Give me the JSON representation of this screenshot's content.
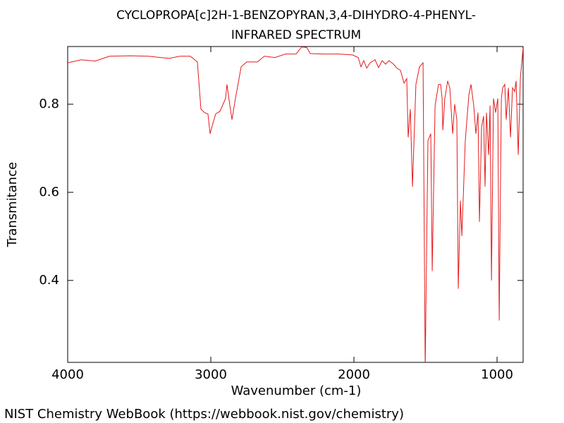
{
  "chart_data": {
    "type": "line",
    "title": "CYCLOPROPA[c]2H-1-BENZOPYRAN,3,4-DIHYDRO-4-PHENYL-",
    "subtitle": "INFRARED SPECTRUM",
    "x_label": "Wavenumber (cm-1)",
    "y_label": "Transmitance",
    "source": "NIST Chemistry WebBook (https://webbook.nist.gov/chemistry)",
    "color": "#e41a1c",
    "xlim": [
      4000,
      818
    ],
    "ylim": [
      0.214,
      0.931
    ],
    "xticks": [
      4000,
      3000,
      2000,
      1000
    ],
    "yticks": [
      0.4,
      0.6,
      0.8
    ],
    "x": [
      4000,
      3906,
      3808,
      3709,
      3562,
      3438,
      3291,
      3217,
      3143,
      3094,
      3069,
      3044,
      3020,
      3005,
      2985,
      2966,
      2936,
      2897,
      2887,
      2867,
      2852,
      2828,
      2788,
      2749,
      2675,
      2626,
      2552,
      2478,
      2404,
      2365,
      2330,
      2305,
      2207,
      2108,
      2010,
      1970,
      1951,
      1931,
      1911,
      1887,
      1852,
      1828,
      1803,
      1779,
      1754,
      1724,
      1700,
      1675,
      1650,
      1631,
      1621,
      1606,
      1591,
      1567,
      1542,
      1517,
      1502,
      1483,
      1463,
      1453,
      1433,
      1409,
      1394,
      1384,
      1379,
      1365,
      1345,
      1330,
      1310,
      1296,
      1281,
      1271,
      1256,
      1246,
      1222,
      1197,
      1182,
      1163,
      1148,
      1133,
      1123,
      1108,
      1094,
      1084,
      1074,
      1059,
      1049,
      1039,
      1025,
      1010,
      995,
      985,
      970,
      961,
      946,
      936,
      921,
      906,
      892,
      877,
      867,
      852,
      837,
      818
    ],
    "values": [
      0.894,
      0.901,
      0.898,
      0.909,
      0.91,
      0.909,
      0.904,
      0.909,
      0.909,
      0.896,
      0.789,
      0.781,
      0.778,
      0.733,
      0.757,
      0.778,
      0.784,
      0.813,
      0.845,
      0.797,
      0.765,
      0.813,
      0.885,
      0.896,
      0.896,
      0.909,
      0.906,
      0.914,
      0.914,
      0.93,
      0.929,
      0.915,
      0.914,
      0.914,
      0.912,
      0.906,
      0.885,
      0.899,
      0.882,
      0.894,
      0.901,
      0.883,
      0.899,
      0.891,
      0.899,
      0.891,
      0.882,
      0.877,
      0.848,
      0.858,
      0.725,
      0.789,
      0.613,
      0.845,
      0.885,
      0.894,
      0.2,
      0.717,
      0.733,
      0.421,
      0.797,
      0.845,
      0.845,
      0.813,
      0.741,
      0.813,
      0.853,
      0.837,
      0.733,
      0.8,
      0.765,
      0.381,
      0.581,
      0.501,
      0.717,
      0.821,
      0.845,
      0.797,
      0.733,
      0.781,
      0.533,
      0.749,
      0.773,
      0.613,
      0.781,
      0.685,
      0.797,
      0.4,
      0.813,
      0.781,
      0.813,
      0.309,
      0.813,
      0.837,
      0.845,
      0.765,
      0.837,
      0.725,
      0.837,
      0.829,
      0.853,
      0.685,
      0.861,
      0.928
    ]
  }
}
